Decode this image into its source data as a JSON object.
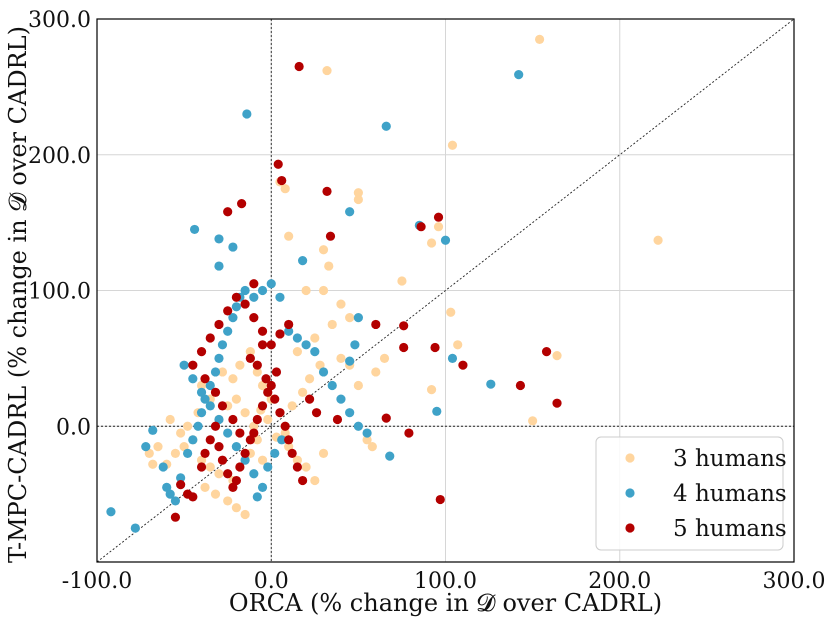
{
  "chart_data": {
    "type": "scatter",
    "xlabel": "ORCA (% change in 𝓓 over CADRL)",
    "ylabel": "T-MPC-CADRL (% change in 𝓓 over CADRL)",
    "xlim": [
      -100,
      300
    ],
    "ylim": [
      -100,
      300
    ],
    "xticks": [
      "-100.0",
      "0.0",
      "100.0",
      "200.0",
      "300.0"
    ],
    "yticks": [
      "0.0",
      "100.0",
      "200.0",
      "300.0"
    ],
    "grid": true,
    "legend_position": "lower-right",
    "reference_lines": [
      "y = x (diagonal, dotted)",
      "x = 0 (dotted)",
      "y = 0 (dotted)"
    ],
    "series": [
      {
        "name": "3 humans",
        "color": "#ffd59e",
        "points": [
          [
            -60,
            -28
          ],
          [
            -55,
            -20
          ],
          [
            -50,
            -15
          ],
          [
            -45,
            -10
          ],
          [
            -52,
            -5
          ],
          [
            -58,
            5
          ],
          [
            -48,
            0
          ],
          [
            -42,
            10
          ],
          [
            -40,
            -25
          ],
          [
            -35,
            -30
          ],
          [
            -30,
            -35
          ],
          [
            -38,
            -45
          ],
          [
            -32,
            -50
          ],
          [
            -25,
            -55
          ],
          [
            -20,
            -60
          ],
          [
            -15,
            -65
          ],
          [
            -22,
            -40
          ],
          [
            -18,
            -30
          ],
          [
            -12,
            -20
          ],
          [
            -8,
            -10
          ],
          [
            -5,
            -25
          ],
          [
            -10,
            0
          ],
          [
            -15,
            10
          ],
          [
            -20,
            20
          ],
          [
            -25,
            15
          ],
          [
            -30,
            5
          ],
          [
            -35,
            20
          ],
          [
            -40,
            30
          ],
          [
            -28,
            40
          ],
          [
            -22,
            35
          ],
          [
            -18,
            45
          ],
          [
            -12,
            55
          ],
          [
            -8,
            40
          ],
          [
            -5,
            30
          ],
          [
            0,
            20
          ],
          [
            5,
            10
          ],
          [
            8,
            -5
          ],
          [
            10,
            -15
          ],
          [
            15,
            -25
          ],
          [
            20,
            -30
          ],
          [
            25,
            -40
          ],
          [
            30,
            -20
          ],
          [
            12,
            15
          ],
          [
            18,
            25
          ],
          [
            22,
            35
          ],
          [
            28,
            45
          ],
          [
            15,
            55
          ],
          [
            25,
            65
          ],
          [
            35,
            75
          ],
          [
            45,
            80
          ],
          [
            20,
            100
          ],
          [
            30,
            100
          ],
          [
            40,
            90
          ],
          [
            10,
            140
          ],
          [
            30,
            130
          ],
          [
            33,
            118
          ],
          [
            40,
            50
          ],
          [
            45,
            45
          ],
          [
            50,
            30
          ],
          [
            60,
            40
          ],
          [
            55,
            -10
          ],
          [
            58,
            -15
          ],
          [
            65,
            50
          ],
          [
            75,
            107
          ],
          [
            92,
            135
          ],
          [
            96,
            147
          ],
          [
            103,
            84
          ],
          [
            107,
            60
          ],
          [
            92,
            27
          ],
          [
            104,
            207
          ],
          [
            50,
            167
          ],
          [
            50,
            172
          ],
          [
            32,
            262
          ],
          [
            154,
            285
          ],
          [
            222,
            137
          ],
          [
            164,
            52
          ],
          [
            150,
            4
          ],
          [
            -68,
            -28
          ],
          [
            -70,
            -20
          ],
          [
            -65,
            -15
          ],
          [
            5,
            180
          ],
          [
            8,
            175
          ],
          [
            -2,
            5
          ],
          [
            3,
            -8
          ],
          [
            -6,
            12
          ]
        ]
      },
      {
        "name": "4 humans",
        "color": "#3fa2c8",
        "points": [
          [
            -92,
            -63
          ],
          [
            -78,
            -75
          ],
          [
            -72,
            -15
          ],
          [
            -68,
            -3
          ],
          [
            -62,
            -30
          ],
          [
            -60,
            -45
          ],
          [
            -58,
            -50
          ],
          [
            -55,
            -55
          ],
          [
            -52,
            -38
          ],
          [
            -48,
            -20
          ],
          [
            -45,
            -10
          ],
          [
            -42,
            0
          ],
          [
            -40,
            10
          ],
          [
            -38,
            20
          ],
          [
            -35,
            30
          ],
          [
            -32,
            40
          ],
          [
            -30,
            50
          ],
          [
            -28,
            60
          ],
          [
            -25,
            70
          ],
          [
            -22,
            80
          ],
          [
            -20,
            88
          ],
          [
            -18,
            95
          ],
          [
            -15,
            100
          ],
          [
            -10,
            95
          ],
          [
            -5,
            100
          ],
          [
            0,
            105
          ],
          [
            5,
            95
          ],
          [
            10,
            70
          ],
          [
            15,
            65
          ],
          [
            20,
            60
          ],
          [
            25,
            55
          ],
          [
            30,
            40
          ],
          [
            35,
            30
          ],
          [
            40,
            20
          ],
          [
            45,
            10
          ],
          [
            50,
            0
          ],
          [
            55,
            -5
          ],
          [
            -50,
            45
          ],
          [
            -45,
            35
          ],
          [
            -40,
            25
          ],
          [
            -35,
            15
          ],
          [
            -30,
            5
          ],
          [
            -25,
            -5
          ],
          [
            -20,
            -15
          ],
          [
            -15,
            -25
          ],
          [
            -10,
            -35
          ],
          [
            -5,
            -45
          ],
          [
            -8,
            -52
          ],
          [
            -2,
            -30
          ],
          [
            2,
            -20
          ],
          [
            6,
            -10
          ],
          [
            -44,
            145
          ],
          [
            -30,
            138
          ],
          [
            -22,
            132
          ],
          [
            -30,
            118
          ],
          [
            -14,
            230
          ],
          [
            66,
            221
          ],
          [
            142,
            259
          ],
          [
            100,
            137
          ],
          [
            85,
            148
          ],
          [
            45,
            158
          ],
          [
            18,
            122
          ],
          [
            104,
            50
          ],
          [
            126,
            31
          ],
          [
            95,
            11
          ],
          [
            68,
            -22
          ],
          [
            45,
            48
          ],
          [
            48,
            60
          ],
          [
            50,
            80
          ]
        ]
      },
      {
        "name": "5 humans",
        "color": "#b30000",
        "points": [
          [
            -55,
            -67
          ],
          [
            -52,
            -43
          ],
          [
            -48,
            -50
          ],
          [
            -45,
            -52
          ],
          [
            -40,
            -30
          ],
          [
            -38,
            -20
          ],
          [
            -35,
            -10
          ],
          [
            -32,
            0
          ],
          [
            -30,
            -15
          ],
          [
            -28,
            -25
          ],
          [
            -25,
            -35
          ],
          [
            -22,
            -45
          ],
          [
            -20,
            -40
          ],
          [
            -18,
            -30
          ],
          [
            -15,
            -20
          ],
          [
            -12,
            -10
          ],
          [
            -10,
            -5
          ],
          [
            -8,
            5
          ],
          [
            -5,
            15
          ],
          [
            -2,
            25
          ],
          [
            0,
            30
          ],
          [
            2,
            20
          ],
          [
            5,
            10
          ],
          [
            8,
            0
          ],
          [
            10,
            -10
          ],
          [
            12,
            -20
          ],
          [
            15,
            -30
          ],
          [
            18,
            -40
          ],
          [
            -45,
            45
          ],
          [
            -40,
            55
          ],
          [
            -35,
            65
          ],
          [
            -30,
            75
          ],
          [
            -25,
            85
          ],
          [
            -20,
            95
          ],
          [
            -15,
            90
          ],
          [
            -10,
            80
          ],
          [
            -5,
            70
          ],
          [
            0,
            60
          ],
          [
            5,
            68
          ],
          [
            10,
            75
          ],
          [
            -38,
            35
          ],
          [
            -32,
            25
          ],
          [
            -28,
            15
          ],
          [
            -22,
            5
          ],
          [
            -18,
            -5
          ],
          [
            -12,
            50
          ],
          [
            -8,
            45
          ],
          [
            -3,
            35
          ],
          [
            3,
            40
          ],
          [
            -25,
            158
          ],
          [
            -17,
            164
          ],
          [
            16,
            265
          ],
          [
            6,
            181
          ],
          [
            4,
            193
          ],
          [
            32,
            173
          ],
          [
            34,
            140
          ],
          [
            86,
            147
          ],
          [
            96,
            154
          ],
          [
            60,
            75
          ],
          [
            76,
            74
          ],
          [
            76,
            58
          ],
          [
            94,
            58
          ],
          [
            110,
            45
          ],
          [
            143,
            30
          ],
          [
            158,
            55
          ],
          [
            164,
            17
          ],
          [
            97,
            -54
          ],
          [
            79,
            -5
          ],
          [
            66,
            6
          ],
          [
            38,
            5
          ],
          [
            -10,
            105
          ],
          [
            -5,
            60
          ],
          [
            22,
            20
          ],
          [
            26,
            10
          ]
        ]
      }
    ]
  }
}
